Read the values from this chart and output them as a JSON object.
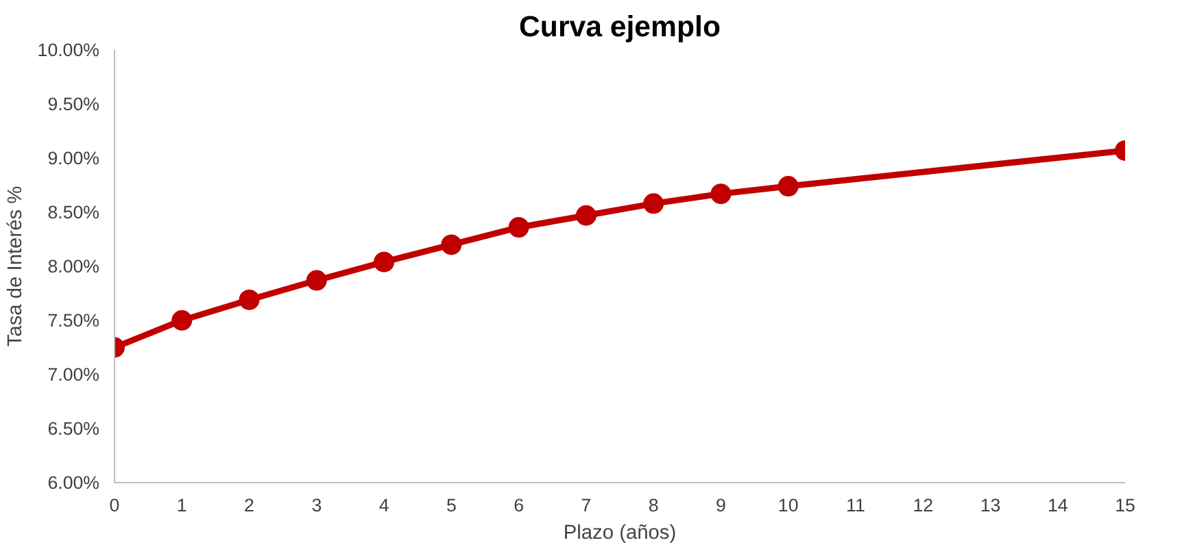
{
  "chart_data": {
    "type": "line",
    "title": "Curva ejemplo",
    "xlabel": "Plazo (años)",
    "ylabel": "Tasa de Interés %",
    "x": [
      0,
      1,
      2,
      3,
      4,
      5,
      6,
      7,
      8,
      9,
      10,
      15
    ],
    "series": [
      {
        "color": "#c00000",
        "values": [
          7.25,
          7.5,
          7.69,
          7.87,
          8.04,
          8.2,
          8.36,
          8.47,
          8.58,
          8.67,
          8.74,
          9.07
        ]
      }
    ],
    "xlim": [
      0,
      15
    ],
    "xticks": [
      0,
      1,
      2,
      3,
      4,
      5,
      6,
      7,
      8,
      9,
      10,
      11,
      12,
      13,
      14,
      15
    ],
    "ylim": [
      6,
      10
    ],
    "yticks": [
      {
        "value": 6,
        "label": "6.00%"
      },
      {
        "value": 6.5,
        "label": "6.50%"
      },
      {
        "value": 7,
        "label": "7.00%"
      },
      {
        "value": 7.5,
        "label": "7.50%"
      },
      {
        "value": 8,
        "label": "8.00%"
      },
      {
        "value": 8.5,
        "label": "8.50%"
      },
      {
        "value": 9,
        "label": "9.00%"
      },
      {
        "value": 9.5,
        "label": "9.50%"
      },
      {
        "value": 10,
        "label": "10.00%"
      }
    ],
    "grid": false,
    "marker": "circle",
    "line_style": "solid"
  }
}
